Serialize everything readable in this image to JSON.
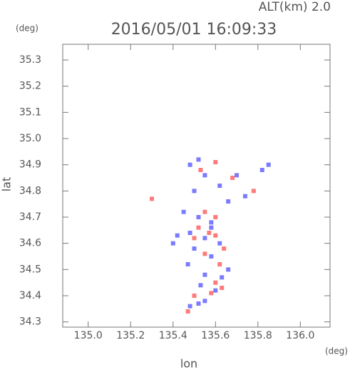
{
  "chart_data": {
    "type": "scatter",
    "title": "2016/05/01 16:09:33",
    "subtitle": "ALT(km) 2.0",
    "y_unit": "(deg)",
    "x_unit": "(deg)",
    "xlabel": "lon",
    "ylabel": "lat",
    "xlim": [
      134.88,
      136.14
    ],
    "ylim": [
      34.28,
      35.36
    ],
    "xticks": [
      {
        "value": 135,
        "label": "135.0"
      },
      135.2,
      135.4,
      135.6,
      135.8,
      {
        "value": 136,
        "label": "136.0"
      }
    ],
    "yticks": [
      34.3,
      34.4,
      34.5,
      34.6,
      34.7,
      34.8,
      34.9,
      {
        "value": 35,
        "label": "35.0"
      },
      35.1,
      35.2,
      35.3
    ],
    "series": [
      {
        "color": "#7b7bff",
        "x": [
          135.52,
          135.48,
          135.55,
          135.82,
          135.85,
          135.7,
          135.62,
          135.5,
          135.74,
          135.66,
          135.45,
          135.52,
          135.58,
          135.42,
          135.48,
          135.55,
          135.62,
          135.5,
          135.58,
          135.47,
          135.55,
          135.63,
          135.6,
          135.55,
          135.48,
          135.52,
          135.66,
          135.4,
          135.53,
          135.58
        ],
        "values": [
          34.92,
          34.9,
          34.86,
          34.88,
          34.9,
          34.86,
          34.82,
          34.8,
          34.78,
          34.76,
          34.72,
          34.7,
          34.68,
          34.63,
          34.64,
          34.62,
          34.6,
          34.58,
          34.55,
          34.52,
          34.48,
          34.47,
          34.42,
          34.38,
          34.36,
          34.37,
          34.5,
          34.6,
          34.44,
          34.66
        ]
      },
      {
        "color": "#ff7b7b",
        "x": [
          135.3,
          135.6,
          135.53,
          135.78,
          135.68,
          135.52,
          135.57,
          135.6,
          135.5,
          135.64,
          135.55,
          135.62,
          135.6,
          135.63,
          135.5,
          135.58,
          135.47,
          135.6,
          135.55
        ],
        "values": [
          34.77,
          34.91,
          34.88,
          34.8,
          34.85,
          34.66,
          34.64,
          34.63,
          34.62,
          34.58,
          34.56,
          34.52,
          34.45,
          34.43,
          34.4,
          34.41,
          34.34,
          34.7,
          34.72
        ]
      }
    ]
  }
}
